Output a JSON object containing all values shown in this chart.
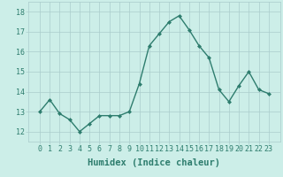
{
  "x": [
    0,
    1,
    2,
    3,
    4,
    5,
    6,
    7,
    8,
    9,
    10,
    11,
    12,
    13,
    14,
    15,
    16,
    17,
    18,
    19,
    20,
    21,
    22,
    23
  ],
  "y": [
    13.0,
    13.6,
    12.9,
    12.6,
    12.0,
    12.4,
    12.8,
    12.8,
    12.8,
    13.0,
    14.4,
    16.3,
    16.9,
    17.5,
    17.8,
    17.1,
    16.3,
    15.7,
    14.1,
    13.5,
    14.3,
    15.0,
    14.1,
    13.9
  ],
  "line_color": "#2e7d6e",
  "marker": "D",
  "marker_size": 2.0,
  "bg_color": "#cceee8",
  "grid_color": "#aacccc",
  "xlabel": "Humidex (Indice chaleur)",
  "ylabel": "",
  "ylim": [
    11.5,
    18.5
  ],
  "yticks": [
    12,
    13,
    14,
    15,
    16,
    17,
    18
  ],
  "xticks": [
    0,
    1,
    2,
    3,
    4,
    5,
    6,
    7,
    8,
    9,
    10,
    11,
    12,
    13,
    14,
    15,
    16,
    17,
    18,
    19,
    20,
    21,
    22,
    23
  ],
  "tick_fontsize": 6.0,
  "xlabel_fontsize": 7.5,
  "linewidth": 1.0
}
